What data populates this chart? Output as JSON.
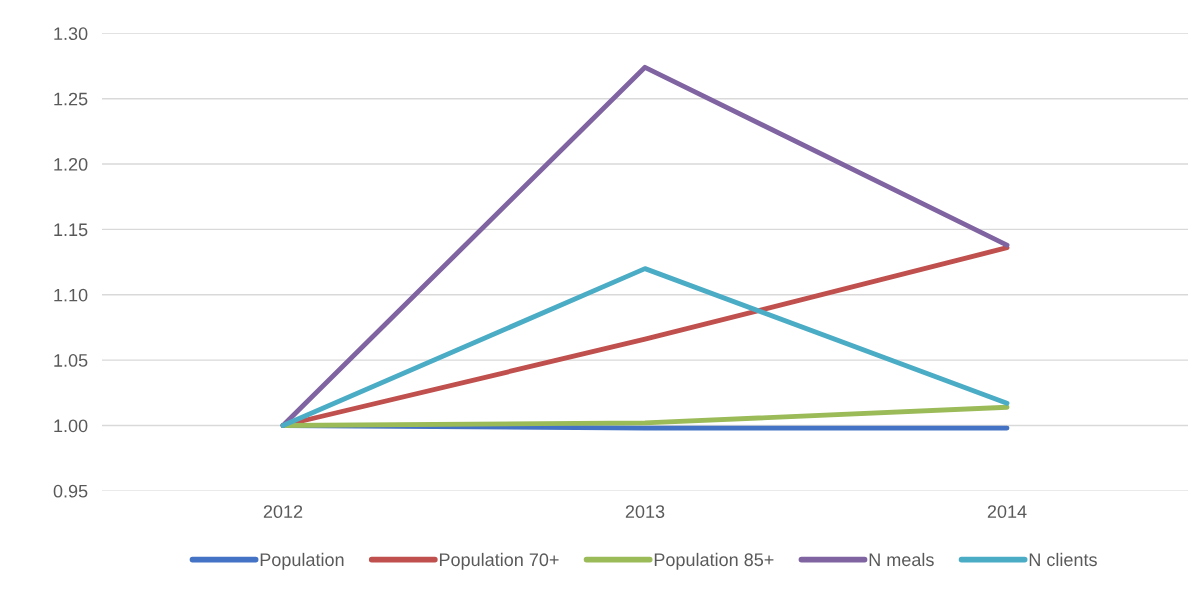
{
  "chart_data": {
    "type": "line",
    "categories": [
      "2012",
      "2013",
      "2014"
    ],
    "series": [
      {
        "name": "Population",
        "color": "#4472c4",
        "values": [
          1.0,
          0.998,
          0.998
        ]
      },
      {
        "name": "Population 70+",
        "color": "#c0504d",
        "values": [
          1.0,
          1.066,
          1.136
        ]
      },
      {
        "name": "Population 85+",
        "color": "#9bbb59",
        "values": [
          1.0,
          1.002,
          1.014
        ]
      },
      {
        "name": "N meals",
        "color": "#8064a2",
        "values": [
          1.0,
          1.274,
          1.138
        ]
      },
      {
        "name": "N clients",
        "color": "#4bacc6",
        "values": [
          1.0,
          1.12,
          1.017
        ]
      }
    ],
    "ylim": [
      0.95,
      1.3
    ],
    "yticks": [
      {
        "value": 0.95,
        "label": "0.95"
      },
      {
        "value": 1.0,
        "label": "1.00"
      },
      {
        "value": 1.05,
        "label": "1.05"
      },
      {
        "value": 1.1,
        "label": "1.10"
      },
      {
        "value": 1.15,
        "label": "1.15"
      },
      {
        "value": 1.2,
        "label": "1.20"
      },
      {
        "value": 1.25,
        "label": "1.25"
      },
      {
        "value": 1.3,
        "label": "1.30"
      }
    ],
    "grid": "y",
    "legend": "bottom",
    "marker": "none",
    "line_style": "solid"
  }
}
